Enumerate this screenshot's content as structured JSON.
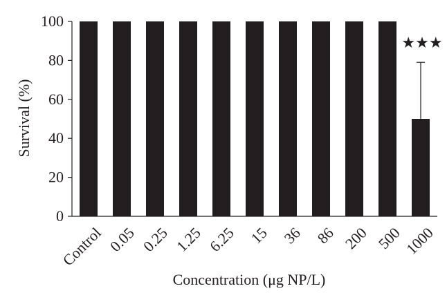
{
  "chart_data": {
    "type": "bar",
    "categories": [
      "Control",
      "0.05",
      "0.25",
      "1.25",
      "6.25",
      "15",
      "36",
      "86",
      "200",
      "500",
      "1000"
    ],
    "series": [
      {
        "values": [
          100,
          100,
          100,
          100,
          100,
          100,
          100,
          100,
          100,
          100,
          50
        ],
        "error_plus": [
          0,
          0,
          0,
          0,
          0,
          0,
          0,
          0,
          0,
          0,
          29
        ]
      }
    ],
    "annotations": [
      {
        "category": "1000",
        "text": "★★★"
      }
    ],
    "xlabel": "Concentration (μg NP/L)",
    "ylabel": "Survival (%)",
    "ylim": [
      0,
      100
    ],
    "yticks": [
      0,
      20,
      40,
      60,
      80,
      100
    ],
    "grid": false,
    "legend": "none",
    "colors": {
      "bar": "#231f20",
      "axis": "#231f20"
    }
  }
}
